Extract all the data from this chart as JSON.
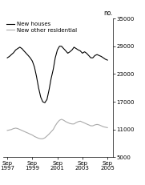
{
  "ylabel": "no.",
  "ylim": [
    5000,
    35000
  ],
  "yticks": [
    5000,
    11000,
    17000,
    23000,
    29000,
    35000
  ],
  "ytick_labels": [
    "5000",
    "11000",
    "17000",
    "23000",
    "29000",
    "35000"
  ],
  "xlim_start": 1997.4,
  "xlim_end": 2006.2,
  "xtick_years": [
    1997,
    1999,
    2001,
    2003,
    2005
  ],
  "xtick_labels": [
    "Sep\n1997",
    "Sep\n1999",
    "Sep\n2001",
    "Sep\n2003",
    "Sep\n2005"
  ],
  "legend_labels": [
    "New houses",
    "New other residential"
  ],
  "line1_color": "#000000",
  "line2_color": "#aaaaaa",
  "background_color": "#ffffff",
  "new_houses_x": [
    1997.75,
    1997.92,
    1998.08,
    1998.25,
    1998.42,
    1998.58,
    1998.75,
    1998.92,
    1999.08,
    1999.25,
    1999.42,
    1999.58,
    1999.75,
    1999.92,
    2000.08,
    2000.25,
    2000.42,
    2000.58,
    2000.75,
    2000.92,
    2001.08,
    2001.25,
    2001.42,
    2001.58,
    2001.75,
    2001.92,
    2002.08,
    2002.25,
    2002.42,
    2002.58,
    2002.75,
    2002.92,
    2003.08,
    2003.25,
    2003.42,
    2003.58,
    2003.75,
    2003.92,
    2004.08,
    2004.25,
    2004.42,
    2004.58,
    2004.75,
    2004.92,
    2005.08,
    2005.25,
    2005.42,
    2005.58,
    2005.75
  ],
  "new_houses_y": [
    26500,
    26800,
    27200,
    27600,
    28200,
    28500,
    28800,
    28500,
    28000,
    27500,
    27000,
    26500,
    25800,
    24500,
    22500,
    20000,
    18000,
    17000,
    16800,
    17500,
    19500,
    22000,
    24000,
    26500,
    28200,
    29000,
    29000,
    28500,
    28000,
    27500,
    27800,
    28200,
    28800,
    28500,
    28200,
    28000,
    27500,
    27800,
    27500,
    27000,
    26500,
    26500,
    27000,
    27200,
    27000,
    26800,
    26500,
    26200,
    26000
  ],
  "new_other_x": [
    1997.75,
    1997.92,
    1998.08,
    1998.25,
    1998.42,
    1998.58,
    1998.75,
    1998.92,
    1999.08,
    1999.25,
    1999.42,
    1999.58,
    1999.75,
    1999.92,
    2000.08,
    2000.25,
    2000.42,
    2000.58,
    2000.75,
    2000.92,
    2001.08,
    2001.25,
    2001.42,
    2001.58,
    2001.75,
    2001.92,
    2002.08,
    2002.25,
    2002.42,
    2002.58,
    2002.75,
    2002.92,
    2003.08,
    2003.25,
    2003.42,
    2003.58,
    2003.75,
    2003.92,
    2004.08,
    2004.25,
    2004.42,
    2004.58,
    2004.75,
    2004.92,
    2005.08,
    2005.25,
    2005.42,
    2005.58,
    2005.75
  ],
  "new_other_y": [
    10800,
    10900,
    11000,
    11200,
    11300,
    11200,
    11000,
    10800,
    10600,
    10400,
    10200,
    10000,
    9800,
    9500,
    9300,
    9100,
    9000,
    9000,
    9200,
    9600,
    10000,
    10500,
    11000,
    11800,
    12500,
    13000,
    13200,
    13000,
    12700,
    12500,
    12300,
    12200,
    12200,
    12500,
    12700,
    12800,
    12600,
    12400,
    12200,
    12000,
    11800,
    11800,
    12000,
    12100,
    12000,
    11800,
    11600,
    11500,
    11400
  ]
}
